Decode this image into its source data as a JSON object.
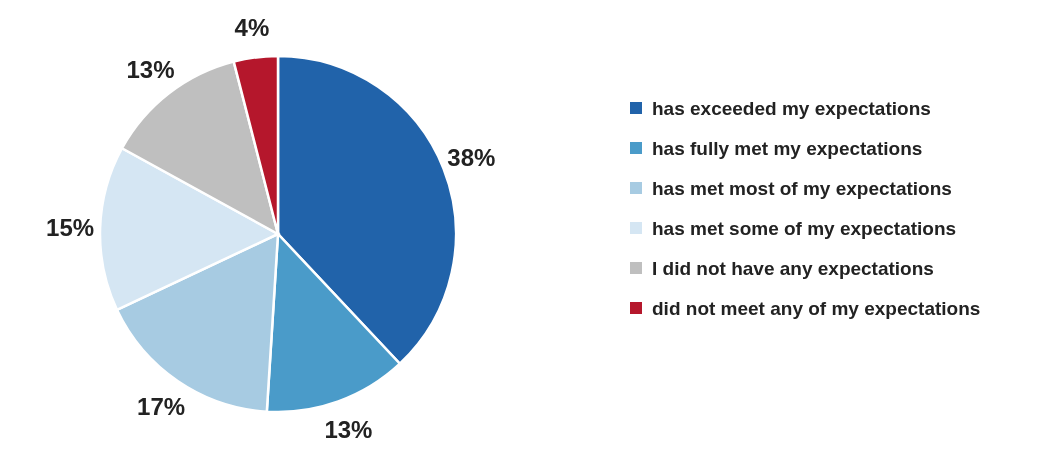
{
  "chart_data": {
    "type": "pie",
    "categories": [
      "has exceeded my expectations",
      "has fully met my expectations",
      "has met most of my expectations",
      "has met some of my expectations",
      "I did not have any expectations",
      "did not meet any of my expectations"
    ],
    "values": [
      38,
      13,
      17,
      15,
      13,
      4
    ],
    "colors": [
      "#2163aa",
      "#4a9bc9",
      "#a7cbe2",
      "#d5e6f3",
      "#bfbfbf",
      "#b5172c"
    ],
    "value_labels": [
      "38%",
      "13%",
      "17%",
      "15%",
      "13%",
      "4%"
    ],
    "legend": "right"
  }
}
